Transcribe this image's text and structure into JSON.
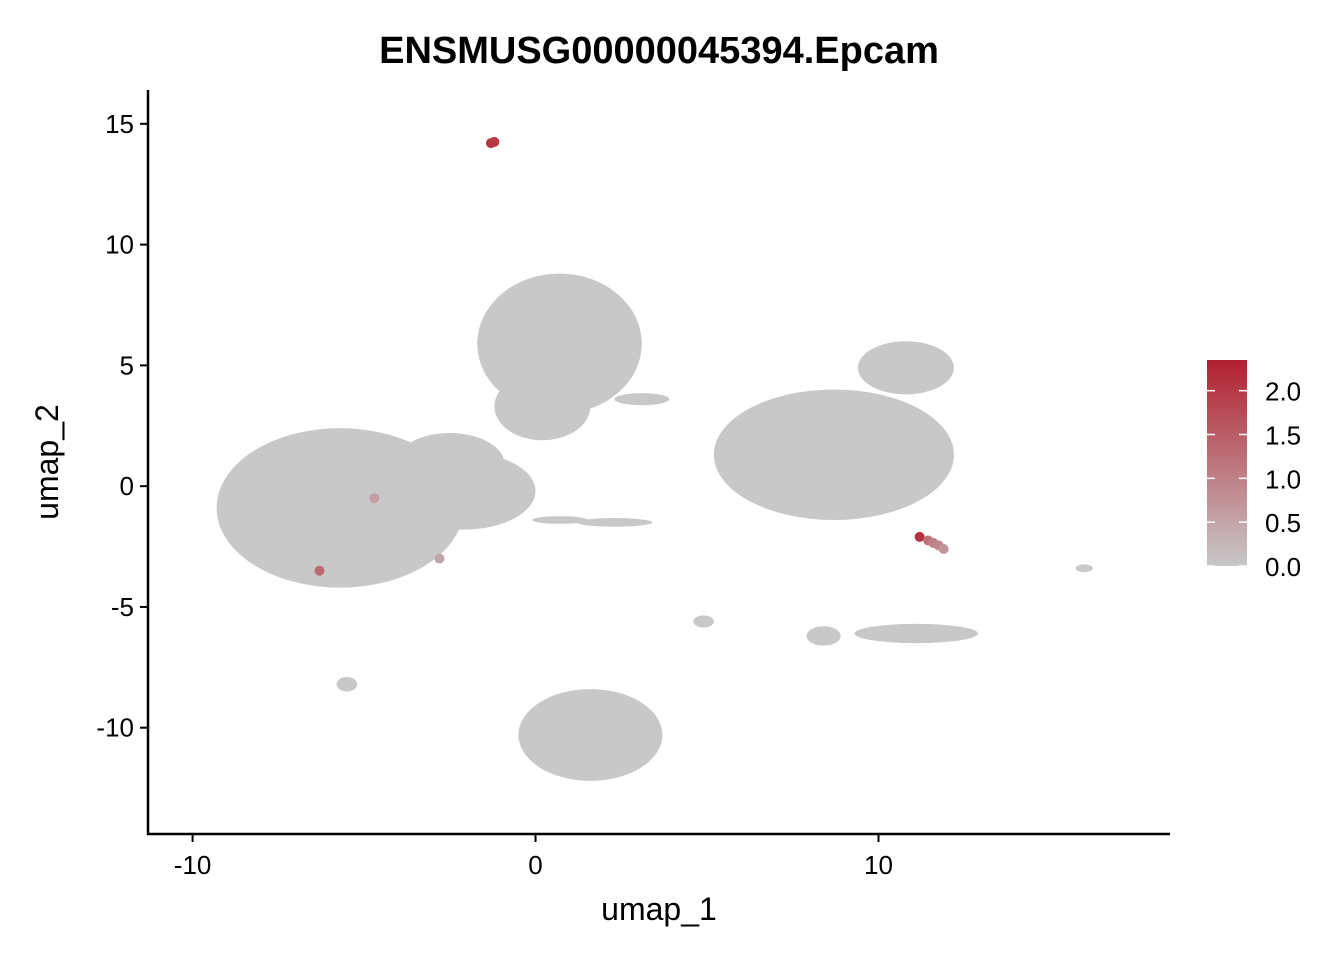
{
  "chart_data": {
    "type": "scatter",
    "title": "ENSMUSG00000045394.Epcam",
    "xlabel": "umap_1",
    "ylabel": "umap_2",
    "xlim": [
      -11.3,
      18.5
    ],
    "ylim": [
      -14.4,
      16.4
    ],
    "x_ticks": [
      -10,
      0,
      10
    ],
    "x_tick_labels": [
      "-10",
      "0",
      "10"
    ],
    "y_ticks": [
      -10,
      -5,
      0,
      5,
      10,
      15
    ],
    "y_tick_labels": [
      "-10",
      "-5",
      "0",
      "5",
      "10",
      "15"
    ],
    "grid": false,
    "colors": {
      "low": "#c8c8c8",
      "high": "#b2202f"
    },
    "clusters": [
      {
        "name": "",
        "cx": -5.7,
        "cy": -0.9,
        "rx": 3.6,
        "ry": 3.3
      },
      {
        "name": "",
        "cx": -2.1,
        "cy": -0.2,
        "rx": 2.1,
        "ry": 1.6
      },
      {
        "name": "",
        "cx": -2.5,
        "cy": 0.9,
        "rx": 1.6,
        "ry": 1.3
      },
      {
        "name": "",
        "cx": 0.7,
        "cy": 5.9,
        "rx": 2.4,
        "ry": 2.9
      },
      {
        "name": "",
        "cx": 0.2,
        "cy": 3.3,
        "rx": 1.4,
        "ry": 1.4
      },
      {
        "name": "",
        "cx": 8.7,
        "cy": 1.3,
        "rx": 3.5,
        "ry": 2.7
      },
      {
        "name": "",
        "cx": 10.8,
        "cy": 4.9,
        "rx": 1.4,
        "ry": 1.1
      },
      {
        "name": "",
        "cx": 1.6,
        "cy": -10.3,
        "rx": 2.1,
        "ry": 1.9
      },
      {
        "name": "",
        "cx": 0.3,
        "cy": -10.4,
        "rx": 0.8,
        "ry": 0.5
      },
      {
        "name": "",
        "cx": 8.4,
        "cy": -6.2,
        "rx": 0.5,
        "ry": 0.4
      },
      {
        "name": "",
        "cx": 11.1,
        "cy": -6.1,
        "rx": 1.8,
        "ry": 0.4
      },
      {
        "name": "",
        "cx": 4.9,
        "cy": -5.6,
        "rx": 0.3,
        "ry": 0.25
      },
      {
        "name": "",
        "cx": 2.3,
        "cy": -1.5,
        "rx": 1.1,
        "ry": 0.18
      },
      {
        "name": "",
        "cx": 0.7,
        "cy": -1.4,
        "rx": 0.8,
        "ry": 0.16
      },
      {
        "name": "",
        "cx": 3.1,
        "cy": 3.6,
        "rx": 0.8,
        "ry": 0.25
      },
      {
        "name": "",
        "cx": -5.5,
        "cy": -8.2,
        "rx": 0.3,
        "ry": 0.3
      },
      {
        "name": "",
        "cx": 16.0,
        "cy": -3.4,
        "rx": 0.25,
        "ry": 0.16
      }
    ],
    "expressing_points": [
      {
        "x": -1.3,
        "y": 14.2,
        "value": 2.1
      },
      {
        "x": -1.2,
        "y": 14.25,
        "value": 2.0
      },
      {
        "x": 11.2,
        "y": -2.1,
        "value": 2.1
      },
      {
        "x": 11.45,
        "y": -2.25,
        "value": 1.2
      },
      {
        "x": 11.6,
        "y": -2.35,
        "value": 1.0
      },
      {
        "x": 11.75,
        "y": -2.45,
        "value": 0.9
      },
      {
        "x": 11.9,
        "y": -2.6,
        "value": 0.7
      },
      {
        "x": -2.8,
        "y": -3.0,
        "value": 0.5
      },
      {
        "x": -6.3,
        "y": -3.5,
        "value": 1.3
      },
      {
        "x": -4.7,
        "y": -0.5,
        "value": 0.6
      }
    ],
    "legend": {
      "title": "",
      "placement": "right",
      "min": 0.0,
      "max": 2.35,
      "ticks": [
        0.0,
        0.5,
        1.0,
        1.5,
        2.0
      ],
      "tick_labels": [
        "0.0",
        "0.5",
        "1.0",
        "1.5",
        "2.0"
      ]
    }
  }
}
